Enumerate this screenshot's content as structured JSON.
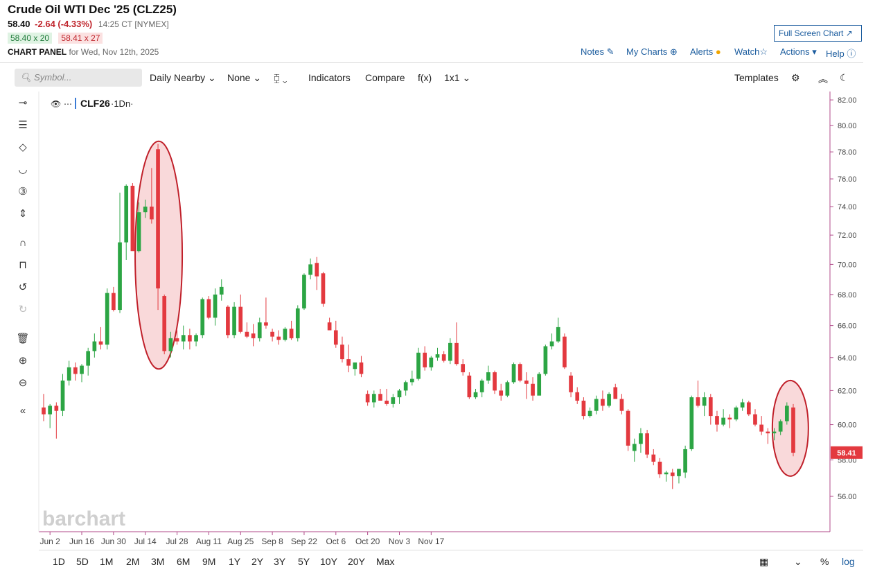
{
  "header": {
    "title": "Crude Oil WTI Dec '25 (CLZ25)",
    "last": "58.40",
    "change": "-2.64 (-4.33%)",
    "time": "14:25 CT [NYMEX]",
    "bid": "58.40 x 20",
    "ask": "58.41 x 27",
    "panel_label": "CHART PANEL",
    "panel_date": "for Wed, Nov 12th, 2025",
    "fullscreen": "Full Screen Chart ↗"
  },
  "links": {
    "notes": "Notes",
    "mycharts": "My Charts",
    "alerts": "Alerts",
    "watch": "Watch",
    "actions": "Actions ▾",
    "help": "Help"
  },
  "toolbar": {
    "search_placeholder": "Symbol...",
    "period": "Daily Nearby",
    "none": "None",
    "indicators": "Indicators",
    "compare": "Compare",
    "fx": "f(x)",
    "layout": "1x1",
    "templates": "Templates"
  },
  "legend": {
    "symbol": "CLF26",
    "interval": "·1Dn·"
  },
  "watermark": "barchart",
  "bottom": {
    "ranges": [
      "1D",
      "5D",
      "1M",
      "2M",
      "3M",
      "6M",
      "9M",
      "1Y",
      "2Y",
      "3Y",
      "5Y",
      "10Y",
      "20Y",
      "Max"
    ],
    "pct": "%",
    "log": "log"
  },
  "colors": {
    "up": "#2ca544",
    "down": "#e3393f",
    "highlight_stroke": "#c0202a",
    "highlight_fill": "#f7c9cb",
    "price_tag": "#e3393f"
  },
  "chart_data": {
    "type": "candlestick",
    "ylim": [
      54.2,
      82.5
    ],
    "log_scale": true,
    "yticks": [
      "82.00",
      "80.00",
      "78.00",
      "76.00",
      "74.00",
      "72.00",
      "70.00",
      "68.00",
      "66.00",
      "64.00",
      "62.00",
      "60.00",
      "58.00",
      "56.00"
    ],
    "xtick_labels": [
      "Jun 2",
      "Jun 16",
      "Jun 30",
      "Jul 14",
      "Jul 28",
      "Aug 11",
      "Aug 25",
      "Sep 8",
      "Sep 22",
      "Oct 6",
      "Oct 20",
      "Nov 3",
      "Nov 17"
    ],
    "last_price_label": "58.41",
    "candles": [
      [
        61.0,
        61.8,
        60.2,
        60.6
      ],
      [
        60.6,
        61.2,
        59.8,
        61.1
      ],
      [
        61.1,
        61.3,
        59.2,
        60.8
      ],
      [
        60.8,
        63.0,
        60.5,
        62.6
      ],
      [
        62.6,
        63.8,
        62.3,
        63.4
      ],
      [
        63.4,
        63.7,
        62.6,
        63.0
      ],
      [
        63.0,
        63.6,
        62.5,
        63.5
      ],
      [
        63.5,
        64.6,
        62.9,
        64.4
      ],
      [
        64.4,
        65.5,
        64.0,
        65.0
      ],
      [
        65.0,
        65.9,
        64.5,
        64.8
      ],
      [
        64.8,
        68.4,
        64.5,
        68.1
      ],
      [
        68.1,
        68.5,
        66.9,
        67.0
      ],
      [
        67.0,
        75.0,
        66.8,
        71.5
      ],
      [
        71.5,
        75.6,
        70.3,
        75.5
      ],
      [
        75.5,
        75.7,
        71.0,
        70.9
      ],
      [
        70.9,
        74.3,
        70.8,
        73.6
      ],
      [
        73.6,
        74.5,
        73.2,
        74.0
      ],
      [
        74.0,
        76.8,
        72.8,
        73.1
      ],
      [
        78.2,
        78.6,
        67.0,
        68.4
      ],
      [
        67.9,
        68.0,
        64.2,
        64.4
      ],
      [
        64.4,
        65.6,
        64.0,
        65.2
      ],
      [
        65.2,
        65.7,
        64.8,
        65.0
      ],
      [
        65.0,
        66.0,
        64.5,
        65.4
      ],
      [
        65.4,
        65.8,
        64.5,
        65.0
      ],
      [
        65.0,
        65.5,
        64.7,
        65.4
      ],
      [
        65.4,
        67.8,
        65.2,
        67.7
      ],
      [
        67.7,
        67.9,
        66.4,
        66.5
      ],
      [
        66.5,
        68.4,
        66.0,
        68.0
      ],
      [
        68.0,
        69.0,
        67.6,
        68.5
      ],
      [
        67.2,
        67.3,
        65.2,
        65.4
      ],
      [
        65.4,
        67.5,
        65.2,
        67.2
      ],
      [
        67.2,
        68.0,
        65.5,
        65.6
      ],
      [
        65.6,
        66.2,
        65.2,
        65.3
      ],
      [
        65.5,
        66.1,
        64.7,
        65.2
      ],
      [
        65.2,
        66.5,
        65.0,
        66.2
      ],
      [
        66.2,
        67.8,
        65.8,
        66.0
      ],
      [
        65.6,
        65.8,
        65.0,
        65.3
      ],
      [
        65.3,
        65.7,
        64.8,
        65.1
      ],
      [
        65.1,
        65.9,
        65.0,
        65.8
      ],
      [
        65.8,
        66.3,
        65.1,
        65.2
      ],
      [
        65.2,
        67.3,
        65.0,
        67.1
      ],
      [
        67.1,
        69.4,
        67.0,
        69.3
      ],
      [
        69.3,
        70.4,
        69.0,
        70.0
      ],
      [
        70.1,
        70.5,
        68.3,
        69.2
      ],
      [
        69.4,
        69.5,
        67.2,
        67.4
      ],
      [
        66.2,
        66.5,
        65.8,
        65.7
      ],
      [
        65.7,
        66.3,
        64.6,
        64.8
      ],
      [
        64.8,
        65.3,
        63.7,
        63.9
      ],
      [
        63.9,
        64.8,
        63.1,
        63.5
      ],
      [
        63.3,
        63.5,
        62.9,
        63.7
      ],
      [
        63.7,
        64.1,
        62.8,
        63.0
      ],
      [
        61.8,
        62.0,
        61.1,
        61.3
      ],
      [
        61.3,
        62.0,
        61.0,
        61.8
      ],
      [
        61.8,
        62.1,
        61.5,
        61.4
      ],
      [
        61.4,
        62.1,
        61.1,
        61.2
      ],
      [
        61.2,
        61.8,
        61.0,
        61.6
      ],
      [
        61.6,
        62.1,
        61.2,
        62.0
      ],
      [
        62.0,
        62.6,
        61.7,
        62.5
      ],
      [
        62.5,
        63.2,
        62.3,
        62.7
      ],
      [
        62.7,
        64.6,
        62.6,
        64.3
      ],
      [
        64.3,
        64.7,
        63.2,
        63.4
      ],
      [
        63.4,
        64.1,
        63.2,
        64.0
      ],
      [
        64.0,
        64.6,
        63.8,
        64.2
      ],
      [
        64.2,
        64.4,
        63.7,
        63.8
      ],
      [
        63.8,
        65.2,
        63.6,
        64.9
      ],
      [
        64.9,
        66.2,
        63.5,
        63.6
      ],
      [
        63.6,
        63.9,
        62.9,
        63.1
      ],
      [
        62.9,
        63.1,
        61.5,
        61.6
      ],
      [
        61.6,
        62.1,
        61.5,
        61.9
      ],
      [
        61.9,
        62.7,
        61.6,
        62.6
      ],
      [
        62.6,
        63.5,
        62.4,
        63.1
      ],
      [
        63.1,
        63.2,
        61.8,
        62.0
      ],
      [
        62.0,
        62.4,
        61.4,
        61.7
      ],
      [
        61.7,
        62.6,
        61.6,
        62.5
      ],
      [
        62.5,
        63.7,
        62.4,
        63.6
      ],
      [
        63.6,
        63.7,
        62.5,
        62.6
      ],
      [
        62.6,
        63.1,
        61.5,
        62.4
      ],
      [
        62.4,
        62.8,
        61.4,
        61.7
      ],
      [
        61.7,
        63.1,
        61.8,
        63.0
      ],
      [
        63.0,
        64.8,
        62.9,
        64.7
      ],
      [
        64.7,
        65.5,
        64.5,
        65.0
      ],
      [
        65.0,
        66.5,
        64.9,
        65.9
      ],
      [
        65.3,
        65.5,
        63.3,
        63.4
      ],
      [
        62.9,
        63.1,
        61.6,
        61.9
      ],
      [
        61.9,
        62.2,
        61.2,
        61.4
      ],
      [
        61.4,
        61.6,
        60.3,
        60.5
      ],
      [
        60.5,
        61.0,
        60.4,
        60.8
      ],
      [
        60.8,
        61.7,
        60.6,
        61.5
      ],
      [
        61.5,
        62.0,
        60.8,
        61.1
      ],
      [
        61.1,
        61.9,
        61.0,
        61.8
      ],
      [
        62.2,
        62.4,
        61.6,
        61.5
      ],
      [
        61.5,
        61.8,
        60.6,
        60.8
      ],
      [
        60.8,
        60.9,
        58.5,
        58.8
      ],
      [
        58.5,
        59.2,
        57.9,
        58.9
      ],
      [
        58.9,
        59.8,
        58.4,
        59.5
      ],
      [
        59.5,
        59.7,
        58.1,
        58.3
      ],
      [
        58.3,
        58.6,
        57.7,
        57.9
      ],
      [
        57.9,
        58.1,
        57.0,
        57.2
      ],
      [
        57.2,
        57.4,
        56.8,
        57.3
      ],
      [
        57.3,
        57.5,
        56.4,
        57.1
      ],
      [
        57.1,
        57.5,
        56.7,
        57.5
      ],
      [
        57.3,
        58.8,
        57.0,
        58.6
      ],
      [
        58.6,
        61.7,
        58.5,
        61.6
      ],
      [
        61.6,
        62.6,
        61.0,
        61.1
      ],
      [
        61.1,
        61.9,
        60.5,
        61.6
      ],
      [
        61.6,
        61.8,
        60.0,
        60.5
      ],
      [
        60.5,
        60.8,
        59.6,
        60.0
      ],
      [
        60.0,
        60.9,
        59.9,
        60.4
      ],
      [
        60.4,
        60.6,
        59.8,
        60.3
      ],
      [
        60.3,
        61.1,
        60.2,
        61.0
      ],
      [
        61.0,
        61.5,
        60.8,
        61.3
      ],
      [
        61.3,
        61.4,
        60.5,
        60.6
      ],
      [
        60.6,
        60.9,
        59.9,
        60.0
      ],
      [
        60.0,
        60.5,
        59.4,
        59.6
      ],
      [
        59.6,
        59.8,
        58.9,
        59.5
      ],
      [
        59.5,
        59.8,
        59.1,
        59.6
      ],
      [
        59.6,
        60.3,
        59.4,
        60.2
      ],
      [
        60.2,
        61.3,
        60.0,
        61.1
      ],
      [
        61.0,
        61.2,
        58.2,
        58.4
      ]
    ],
    "highlights": [
      "Jun 23 spike candle",
      "latest candle Nov 12"
    ]
  }
}
